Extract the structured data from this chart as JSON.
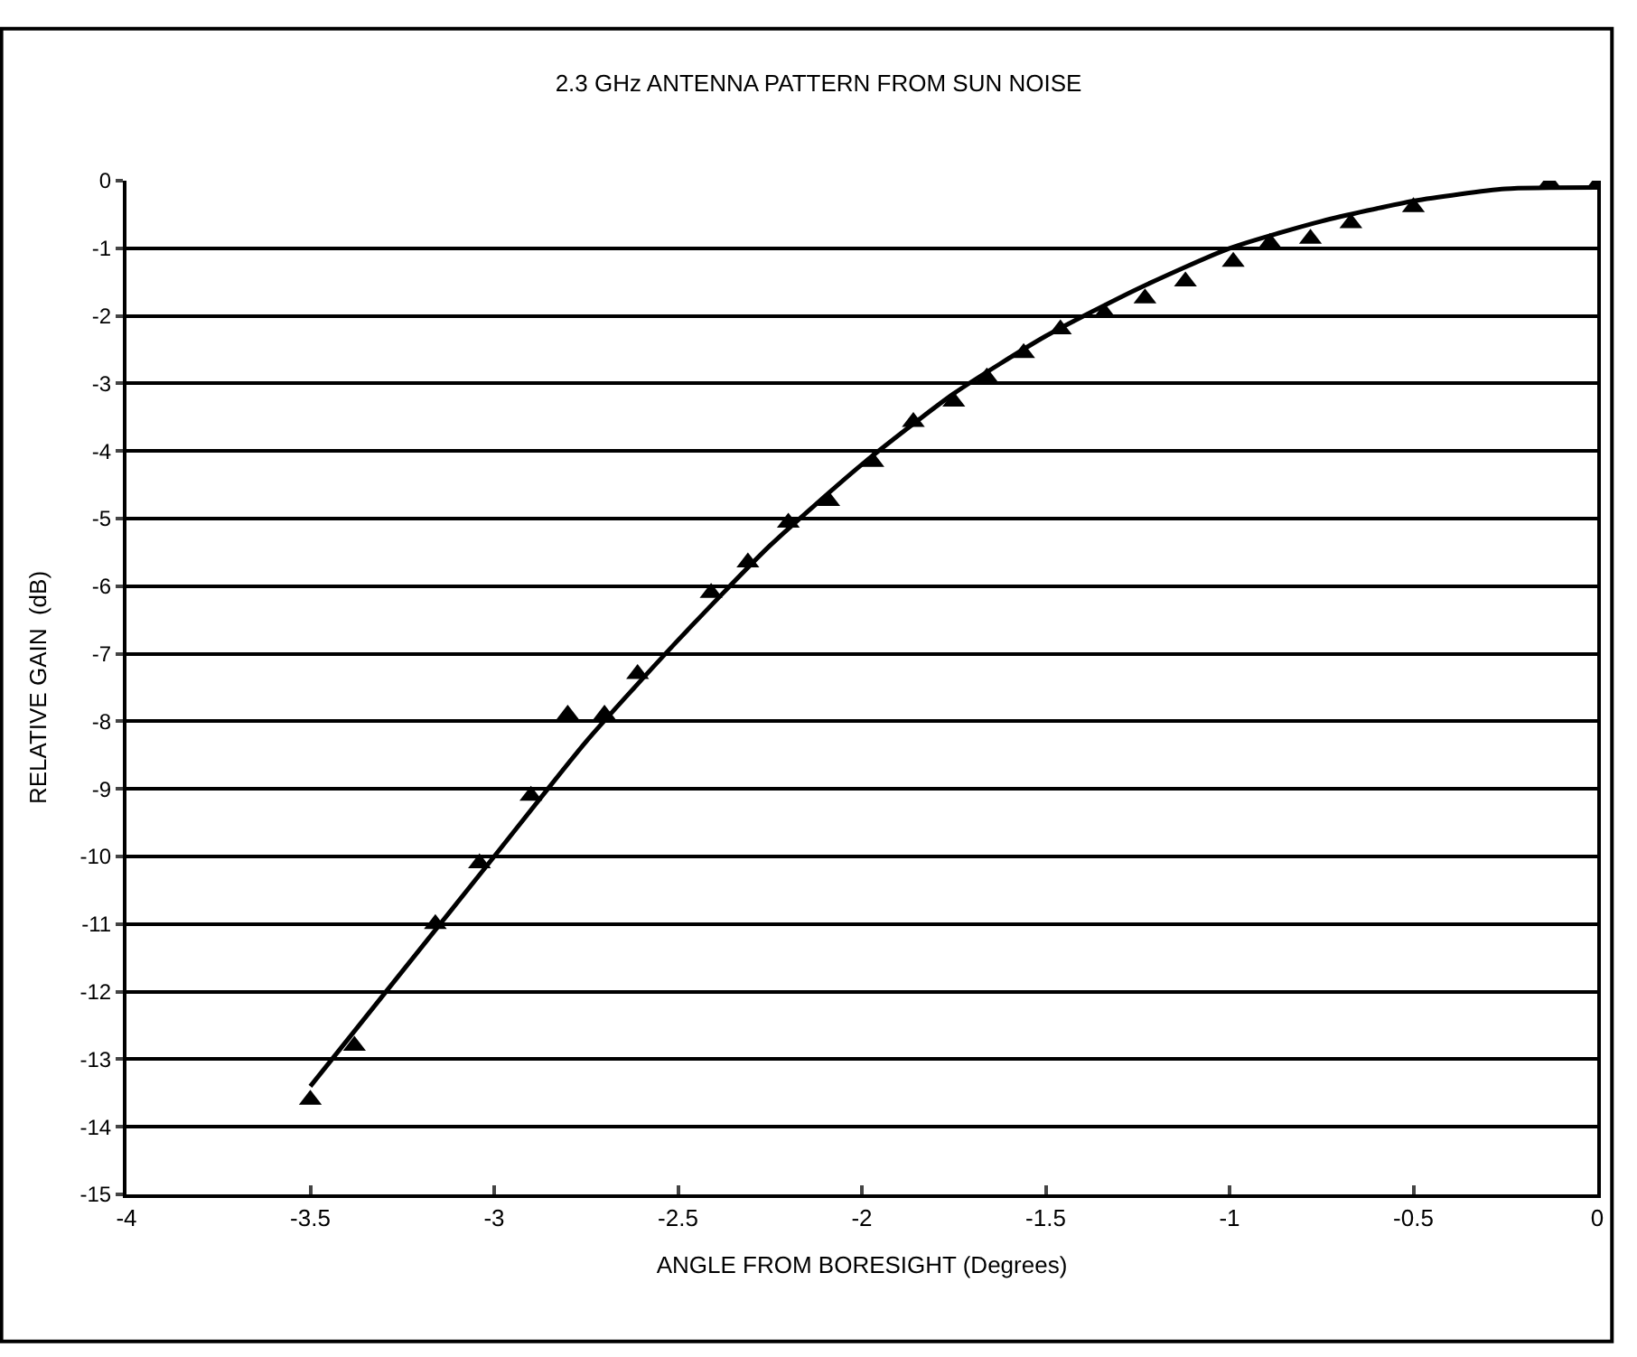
{
  "chart_data": {
    "type": "scatter",
    "title": "2.3 GHz ANTENNA PATTERN FROM SUN NOISE",
    "xlabel": "ANGLE FROM BORESIGHT (Degrees)",
    "ylabel": "RELATIVE GAIN  (dB)",
    "xlim": [
      -4,
      0
    ],
    "xticks": [
      -4,
      -3.5,
      -3,
      -2.5,
      -2,
      -1.5,
      -1,
      -0.5,
      0
    ],
    "ylim": [
      -15,
      0
    ],
    "yticks": [
      -15,
      -14,
      -13,
      -12,
      -11,
      -10,
      -9,
      -8,
      -7,
      -6,
      -5,
      -4,
      -3,
      -2,
      -1,
      0
    ],
    "grid": "y",
    "series": [
      {
        "marker": "triangle",
        "color": "#000000",
        "x": [
          -3.5,
          -3.38,
          -3.16,
          -3.04,
          -2.9,
          -2.8,
          -2.7,
          -2.61,
          -2.41,
          -2.31,
          -2.2,
          -2.09,
          -1.97,
          -1.86,
          -1.75,
          -1.66,
          -1.56,
          -1.46,
          -1.34,
          -1.23,
          -1.12,
          -0.99,
          -0.89,
          -0.78,
          -0.67,
          -0.5,
          -0.13,
          0
        ],
        "values": [
          -13.6,
          -12.8,
          -11.0,
          -10.1,
          -9.1,
          -7.9,
          -7.9,
          -7.3,
          -6.1,
          -5.65,
          -5.06,
          -4.74,
          -4.16,
          -3.57,
          -3.27,
          -2.91,
          -2.55,
          -2.2,
          -1.96,
          -1.74,
          -1.49,
          -1.2,
          -0.92,
          -0.86,
          -0.63,
          -0.39,
          -0.03,
          -0.05
        ]
      },
      {
        "type": "line",
        "marker": "none",
        "line_style": "solid",
        "color": "#000000",
        "x": [
          -3.5,
          -3.25,
          -3,
          -2.75,
          -2.5,
          -2.25,
          -2,
          -1.75,
          -1.5,
          -1.25,
          -1,
          -0.75,
          -0.5,
          -0.25,
          0
        ],
        "values": [
          -13.4,
          -11.7,
          -10.0,
          -8.3,
          -6.8,
          -5.4,
          -4.2,
          -3.15,
          -2.3,
          -1.6,
          -1.0,
          -0.6,
          -0.3,
          -0.12,
          -0.1
        ]
      }
    ]
  }
}
